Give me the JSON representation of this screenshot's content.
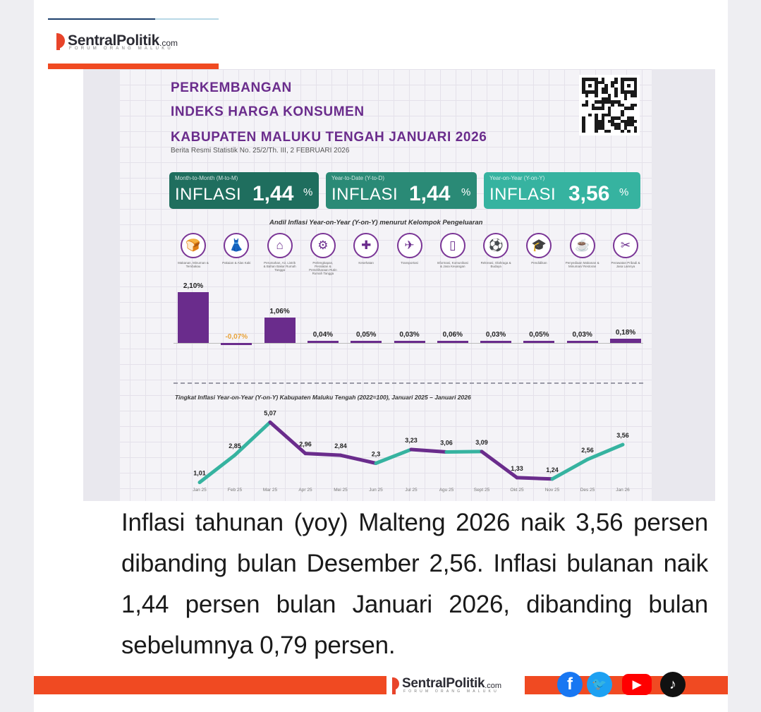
{
  "header": {
    "logo_name": "SentralPolitik",
    "logo_domain": ".com",
    "logo_tagline": "FORUM ORANG MALUKU"
  },
  "infographic": {
    "title_lines": [
      "PERKEMBANGAN",
      "INDEKS HARGA KONSUMEN",
      "KABUPATEN MALUKU TENGAH JANUARI 2026"
    ],
    "subtitle": "Berita Resmi Statistik No. 25/2/Th. III, 2 FEBRUARI 2026",
    "boxes": [
      {
        "small": "Month-to-Month (M-to-M)",
        "label": "INFLASI",
        "value": "1,44",
        "unit": "%",
        "color": "#1f6e5e"
      },
      {
        "small": "Year-to-Date (Y-to-D)",
        "label": "INFLASI",
        "value": "1,44",
        "unit": "%",
        "color": "#2a8a76"
      },
      {
        "small": "Year-on-Year (Y-on-Y)",
        "label": "INFLASI",
        "value": "3,56",
        "unit": "%",
        "color": "#36b3a0"
      }
    ],
    "bar_section_title": "Andil Inflasi Year-on-Year (Y-on-Y) menurut Kelompok Pengeluaran",
    "categories": [
      {
        "label": "Makanan, Minuman & Tembakau",
        "icon": "food-icon",
        "glyph": "🍞"
      },
      {
        "label": "Pakaian & Alas Kaki",
        "icon": "clothing-icon",
        "glyph": "👗"
      },
      {
        "label": "Perumahan, Air, Listrik & Bahan Bakar Rumah Tangga",
        "icon": "house-icon",
        "glyph": "⌂"
      },
      {
        "label": "Perlengkapan, Peralatan & Pemeliharaan Rutin Rumah Tangga",
        "icon": "appliance-icon",
        "glyph": "⚙"
      },
      {
        "label": "Kesehatan",
        "icon": "health-icon",
        "glyph": "✚"
      },
      {
        "label": "Transportasi",
        "icon": "airplane-icon",
        "glyph": "✈"
      },
      {
        "label": "Informasi, Komunikasi & Jasa Keuangan",
        "icon": "phone-icon",
        "glyph": "▯"
      },
      {
        "label": "Rekreasi, Olahraga & Budaya",
        "icon": "sport-icon",
        "glyph": "⚽"
      },
      {
        "label": "Pendidikan",
        "icon": "education-icon",
        "glyph": "🎓"
      },
      {
        "label": "Penyediaan Makanan & Minuman/ Restoran",
        "icon": "restaurant-icon",
        "glyph": "☕"
      },
      {
        "label": "Perawatan Pribadi & Jasa Lainnya",
        "icon": "tools-icon",
        "glyph": "✂"
      }
    ],
    "line_section_title": "Tingkat Inflasi Year-on-Year (Y-on-Y) Kabupaten Maluku Tengah (2022=100), Januari 2025 – Januari 2026"
  },
  "chart_data": [
    {
      "type": "bar",
      "categories": [
        "Makanan, Minuman & Tembakau",
        "Pakaian & Alas Kaki",
        "Perumahan, Air, Listrik & Bahan Bakar Rumah Tangga",
        "Perlengkapan, Peralatan & Pemeliharaan Rutin Rumah Tangga",
        "Kesehatan",
        "Transportasi",
        "Informasi, Komunikasi & Jasa Keuangan",
        "Rekreasi, Olahraga & Budaya",
        "Pendidikan",
        "Penyediaan Makanan & Minuman/ Restoran",
        "Perawatan Pribadi & Jasa Lainnya"
      ],
      "values": [
        2.1,
        -0.07,
        1.06,
        0.04,
        0.05,
        0.03,
        0.06,
        0.03,
        0.05,
        0.03,
        0.18
      ],
      "labels": [
        "2,10%",
        "-0,07%",
        "1,06%",
        "0,04%",
        "0,05%",
        "0,03%",
        "0,06%",
        "0,03%",
        "0,05%",
        "0,03%",
        "0,18%"
      ],
      "title": "Andil Inflasi Year-on-Year (Y-on-Y) menurut Kelompok Pengeluaran",
      "bar_color": "#6a2c8c",
      "negative_label_color": "#e8a33a"
    },
    {
      "type": "line",
      "x": [
        "Jan 25",
        "Feb 25",
        "Mar 25",
        "Apr 25",
        "Mei 25",
        "Jun 25",
        "Jul 25",
        "Agu 25",
        "Sept 25",
        "Okt 25",
        "Nov 25",
        "Des 25",
        "Jan 26"
      ],
      "values": [
        1.01,
        2.85,
        5.07,
        2.96,
        2.84,
        2.3,
        3.23,
        3.06,
        3.09,
        1.33,
        1.24,
        2.56,
        3.56
      ],
      "labels": [
        "1,01",
        "2,85",
        "5,07",
        "2,96",
        "2,84",
        "2,3",
        "3,23",
        "3,06",
        "3,09",
        "1,33",
        "1,24",
        "2,56",
        "3,56"
      ],
      "title": "Tingkat Inflasi Year-on-Year (Y-on-Y) Kabupaten Maluku Tengah (2022=100), Januari 2025 – Januari 2026",
      "colors": {
        "rising": "#36b3a0",
        "falling": "#6a2c8c"
      }
    }
  ],
  "article": {
    "text": "Inflasi tahunan (yoy) Malteng 2026 naik 3,56 persen dibanding bulan Desember 2,56. Inflasi bulanan naik 1,44 persen bulan Januari 2026, dibanding bulan sebelumnya 0,79 persen."
  },
  "footer": {
    "logo_name": "SentralPolitik",
    "logo_domain": ".com",
    "logo_tagline": "FORUM ORANG MALUKU",
    "social": [
      {
        "name": "facebook-icon",
        "glyph": "f",
        "color": "#1877f2"
      },
      {
        "name": "twitter-icon",
        "glyph": "🐦",
        "color": "#1da1f2"
      },
      {
        "name": "youtube-icon",
        "glyph": "▶",
        "color": "#ff0000"
      },
      {
        "name": "tiktok-icon",
        "glyph": "♪",
        "color": "#111111"
      }
    ]
  },
  "colors": {
    "accent": "#f04a22",
    "purple": "#6a2c8c",
    "teal": "#36b3a0"
  }
}
